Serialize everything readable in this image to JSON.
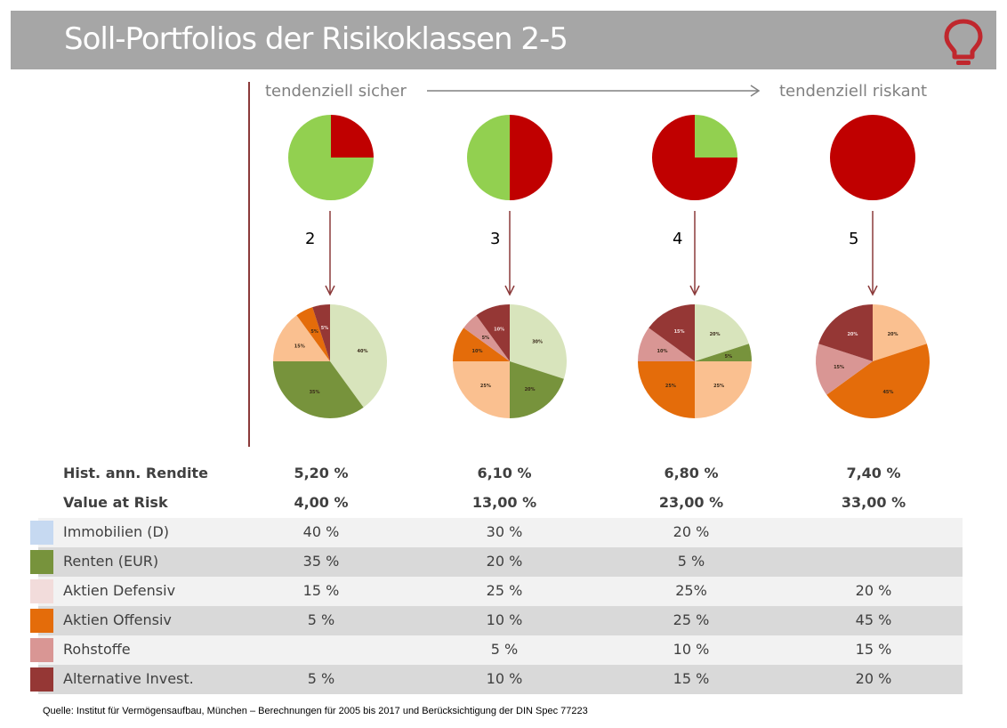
{
  "header": {
    "title": "Soll-Portfolios der Risikoklassen 2-5",
    "icon": "lightbulb-icon",
    "icon_color": "#c0272d"
  },
  "scale": {
    "left_label": "tendenziell sicher",
    "right_label": "tendenziell riskant"
  },
  "chart_data": [
    {
      "type": "pie",
      "title": "Risikoklasse 2 (Übersicht)",
      "categories": [
        "sicher",
        "riskant"
      ],
      "values": [
        75,
        25
      ],
      "colors": [
        "#92d050",
        "#c00000"
      ]
    },
    {
      "type": "pie",
      "title": "Risikoklasse 3 (Übersicht)",
      "categories": [
        "sicher",
        "riskant"
      ],
      "values": [
        50,
        50
      ],
      "colors": [
        "#92d050",
        "#c00000"
      ]
    },
    {
      "type": "pie",
      "title": "Risikoklasse 4 (Übersicht)",
      "categories": [
        "sicher",
        "riskant"
      ],
      "values": [
        25,
        75
      ],
      "colors": [
        "#92d050",
        "#c00000"
      ]
    },
    {
      "type": "pie",
      "title": "Risikoklasse 5 (Übersicht)",
      "categories": [
        "sicher",
        "riskant"
      ],
      "values": [
        0,
        100
      ],
      "colors": [
        "#92d050",
        "#c00000"
      ]
    },
    {
      "type": "pie",
      "title": "Risikoklasse 2",
      "categories": [
        "Immobilien (D)",
        "Renten (EUR)",
        "Aktien Defensiv",
        "Aktien Offensiv",
        "Rohstoffe",
        "Alternative Invest."
      ],
      "values": [
        40,
        35,
        15,
        5,
        0,
        5
      ]
    },
    {
      "type": "pie",
      "title": "Risikoklasse 3",
      "categories": [
        "Immobilien (D)",
        "Renten (EUR)",
        "Aktien Defensiv",
        "Aktien Offensiv",
        "Rohstoffe",
        "Alternative Invest."
      ],
      "values": [
        30,
        20,
        25,
        10,
        5,
        10
      ]
    },
    {
      "type": "pie",
      "title": "Risikoklasse 4",
      "categories": [
        "Immobilien (D)",
        "Renten (EUR)",
        "Aktien Defensiv",
        "Aktien Offensiv",
        "Rohstoffe",
        "Alternative Invest."
      ],
      "values": [
        20,
        5,
        25,
        25,
        10,
        15
      ]
    },
    {
      "type": "pie",
      "title": "Risikoklasse 5",
      "categories": [
        "Immobilien (D)",
        "Renten (EUR)",
        "Aktien Defensiv",
        "Aktien Offensiv",
        "Rohstoffe",
        "Alternative Invest."
      ],
      "values": [
        0,
        0,
        20,
        45,
        15,
        20
      ]
    }
  ],
  "pie_colors": {
    "detail": [
      "#d8e4bc",
      "#77933c",
      "#fac090",
      "#e46c0a",
      "#d99694",
      "#953735"
    ]
  },
  "classes": [
    "2",
    "3",
    "4",
    "5"
  ],
  "stats": {
    "rendite_label": "Hist. ann. Rendite",
    "rendite": [
      "5,20 %",
      "6,10 %",
      "6,80 %",
      "7,40 %"
    ],
    "var_label": "Value at Risk",
    "var": [
      "4,00 %",
      "13,00 %",
      "23,00 %",
      "33,00 %"
    ]
  },
  "table": {
    "rows": [
      {
        "label": "Immobilien (D)",
        "color": "#c6d9f1",
        "values": [
          "40 %",
          "30 %",
          "20 %",
          ""
        ]
      },
      {
        "label": "Renten (EUR)",
        "color": "#77933c",
        "values": [
          "35 %",
          "20 %",
          "5 %",
          ""
        ]
      },
      {
        "label": "Aktien Defensiv",
        "color": "#f2dcdb",
        "values": [
          "15 %",
          "25 %",
          "25%",
          "20 %"
        ]
      },
      {
        "label": "Aktien Offensiv",
        "color": "#e46c0a",
        "values": [
          "5 %",
          "10 %",
          "25 %",
          "45 %"
        ]
      },
      {
        "label": "Rohstoffe",
        "color": "#d99694",
        "values": [
          "",
          "5 %",
          "10 %",
          "15 %"
        ]
      },
      {
        "label": "Alternative Invest.",
        "color": "#953735",
        "values": [
          "5 %",
          "10 %",
          "15 %",
          "20 %"
        ]
      }
    ]
  },
  "footer": "Quelle: Institut für Vermögensaufbau, München – Berechnungen für 2005 bis 2017 und Berücksichtigung der DIN Spec 77223"
}
